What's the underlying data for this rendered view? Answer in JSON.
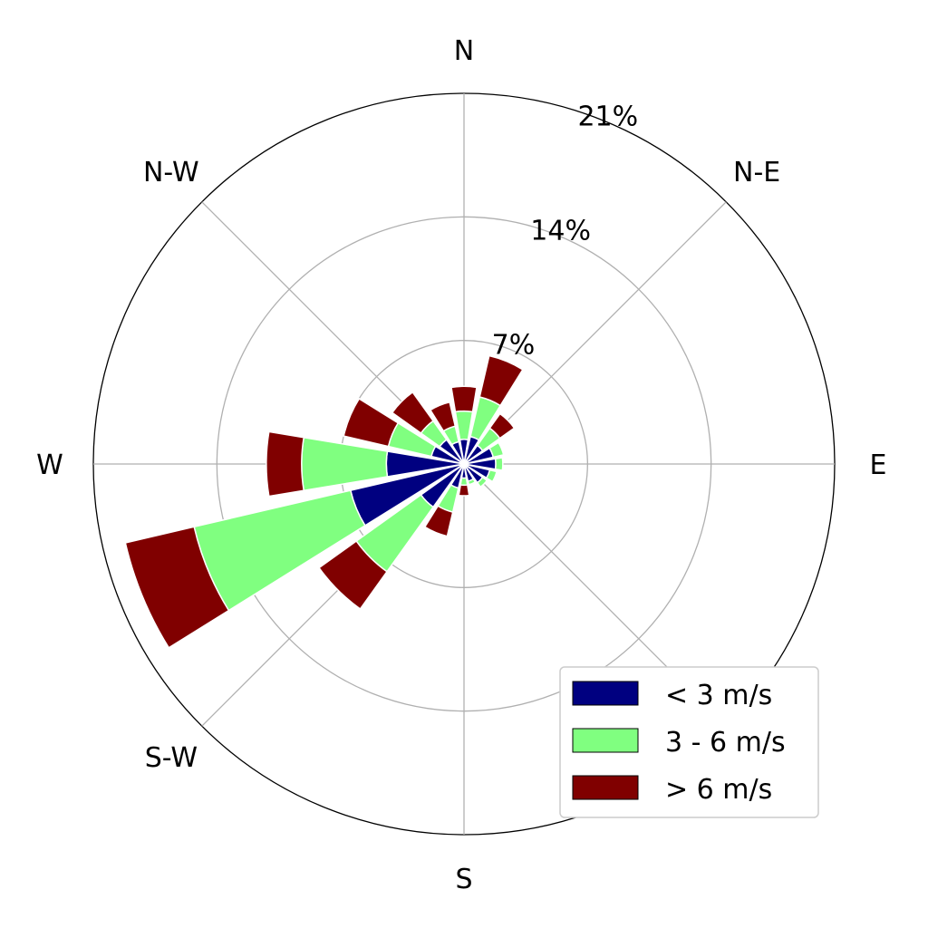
{
  "chart_data": {
    "type": "windrose",
    "directions": [
      "N",
      "NNE",
      "NE",
      "ENE",
      "E",
      "ESE",
      "SE",
      "SSE",
      "S",
      "SSW",
      "SW",
      "WSW",
      "W",
      "WNW",
      "NW",
      "NNW"
    ],
    "direction_angles_deg": [
      0,
      22.5,
      45,
      67.5,
      90,
      112.5,
      135,
      157.5,
      180,
      202.5,
      225,
      247.5,
      270,
      292.5,
      315,
      337.5
    ],
    "compass_labels": [
      {
        "text": "N",
        "angle": 0
      },
      {
        "text": "N-E",
        "angle": 45
      },
      {
        "text": "E",
        "angle": 90
      },
      {
        "text": "S",
        "angle": 180
      },
      {
        "text": "S-W",
        "angle": 225
      },
      {
        "text": "W",
        "angle": 270
      },
      {
        "text": "N-W",
        "angle": 315
      }
    ],
    "radial_ticks": [
      7,
      14,
      21
    ],
    "radial_tick_labels": [
      "7%",
      "14%",
      "21%"
    ],
    "radial_max": 21,
    "unit": "%",
    "grid": true,
    "series": [
      {
        "name": "< 3 m/s",
        "color": "#000080",
        "values": [
          1.4,
          1.6,
          1.3,
          1.7,
          1.8,
          1.5,
          1.3,
          1.0,
          0.8,
          1.4,
          3.0,
          6.6,
          4.4,
          1.9,
          1.7,
          1.3
        ]
      },
      {
        "name": "3 - 6 m/s",
        "color": "#80ff80",
        "values": [
          1.6,
          2.3,
          1.2,
          0.6,
          0.4,
          0.4,
          0.3,
          0.2,
          0.4,
          1.4,
          4.5,
          9.1,
          4.8,
          2.5,
          1.3,
          0.9
        ]
      },
      {
        "name": "> 6 m/s",
        "color": "#800000",
        "values": [
          1.4,
          2.4,
          1.0,
          0,
          0,
          0,
          0,
          0,
          0.6,
          1.4,
          2.6,
          4.0,
          2.0,
          2.6,
          2.0,
          1.4
        ]
      }
    ],
    "legend": {
      "placement": "bottom-right",
      "entries": [
        "< 3 m/s",
        "3 - 6 m/s",
        "> 6 m/s"
      ]
    }
  }
}
